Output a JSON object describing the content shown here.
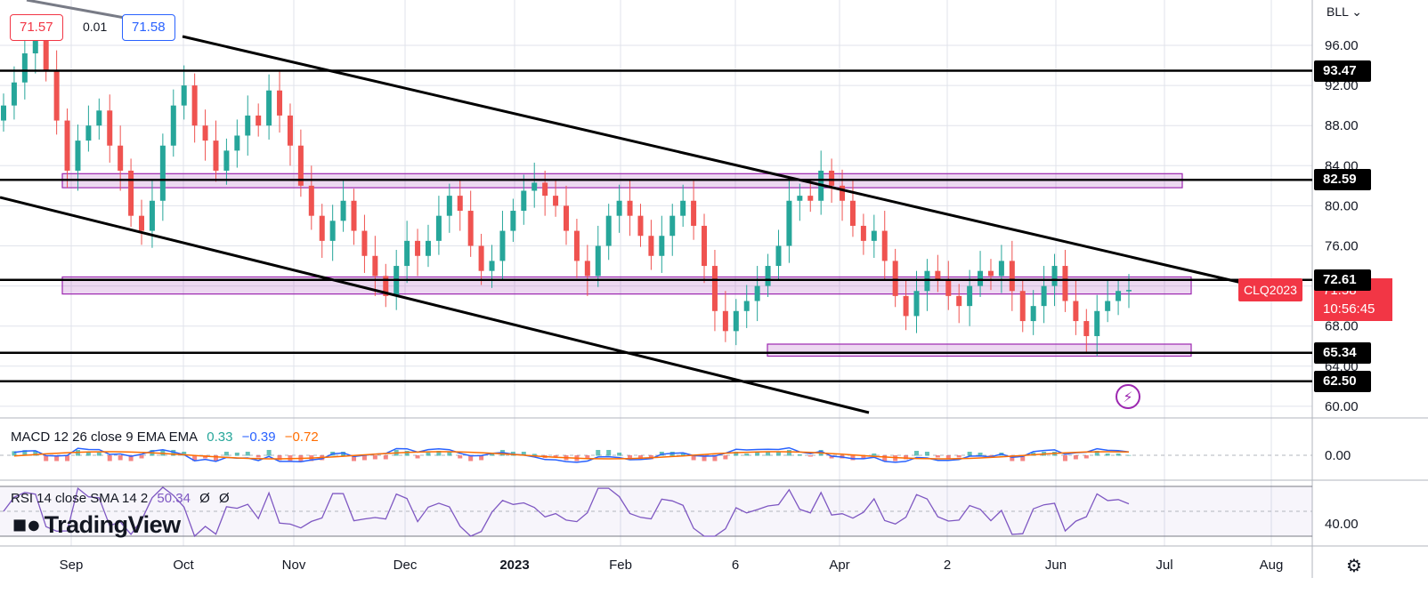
{
  "quote": {
    "bid": "71.57",
    "spread": "0.01",
    "ask": "71.58"
  },
  "currency": "BLL",
  "symbol_tag": "CLQ2023",
  "last_price": "71.58",
  "countdown": "10:56:45",
  "macd": {
    "label": "MACD 12 26 close 9 EMA EMA",
    "hist": "0.33",
    "macd": "−0.39",
    "signal": "−0.72"
  },
  "rsi": {
    "label": "RSI 14 close SMA 14 2",
    "value": "50.34",
    "extra1": "Ø",
    "extra2": "Ø"
  },
  "logo": "TradingView",
  "colors": {
    "up": "#26a69a",
    "down": "#ef5350",
    "zone": "#9c27b0",
    "macd": "#2962ff",
    "signal": "#ff6d00",
    "rsi": "#7e57c2"
  },
  "chart_data": {
    "type": "candlestick",
    "x_ticks": [
      "Sep",
      "Oct",
      "Nov",
      "Dec",
      "2023",
      "Feb",
      "6",
      "Apr",
      "2",
      "Jun",
      "Jul",
      "Aug"
    ],
    "y_ticks": [
      "96.00",
      "92.00",
      "88.00",
      "84.00",
      "80.00",
      "76.00",
      "72.00",
      "68.00",
      "64.00",
      "60.00"
    ],
    "ylim": [
      58,
      100
    ],
    "levels": [
      {
        "value": 93.47,
        "label": "93.47"
      },
      {
        "value": 82.59,
        "label": "82.59"
      },
      {
        "value": 72.61,
        "label": "72.61"
      },
      {
        "value": 65.34,
        "label": "65.34"
      },
      {
        "value": 62.5,
        "label": "62.50"
      }
    ],
    "zones": [
      {
        "from": 81.8,
        "to": 83.2
      },
      {
        "from": 71.2,
        "to": 72.9
      },
      {
        "from": 65.0,
        "to": 66.2
      }
    ],
    "close_series": [
      90.0,
      92.3,
      95.2,
      97.5,
      93.5,
      88.5,
      83.5,
      86.5,
      88.0,
      89.5,
      86.0,
      83.5,
      79.0,
      77.5,
      80.5,
      86.0,
      90.0,
      92.0,
      88.0,
      86.5,
      83.5,
      85.5,
      87.0,
      89.0,
      88.0,
      91.5,
      89.0,
      86.0,
      82.0,
      79.0,
      76.5,
      78.5,
      80.5,
      77.5,
      75.0,
      73.0,
      71.0,
      74.0,
      76.5,
      75.0,
      76.5,
      79.0,
      81.0,
      79.5,
      76.0,
      73.5,
      74.5,
      77.5,
      79.5,
      81.5,
      82.3,
      81.0,
      80.0,
      77.5,
      74.5,
      73.0,
      76.0,
      79.0,
      80.5,
      79.0,
      77.0,
      75.0,
      77.0,
      79.0,
      80.5,
      78.0,
      74.0,
      69.5,
      67.5,
      69.5,
      70.5,
      72.0,
      74.0,
      76.0,
      80.5,
      81.0,
      80.5,
      83.5,
      82.0,
      80.5,
      78.0,
      76.5,
      77.5,
      74.5,
      71.0,
      69.0,
      71.5,
      73.5,
      72.5,
      71.0,
      70.0,
      72.0,
      73.5,
      73.0,
      74.5,
      71.5,
      68.5,
      70.0,
      72.0,
      74.0,
      70.5,
      68.5,
      67.0,
      69.5,
      70.5,
      71.5,
      71.6
    ],
    "macd": {
      "hist": 0.33,
      "macd": -0.39,
      "signal": -0.72,
      "ylim": [
        -2,
        2
      ],
      "tick": "0.00"
    },
    "rsi": {
      "value": 50.34,
      "tick": "40.00"
    }
  }
}
